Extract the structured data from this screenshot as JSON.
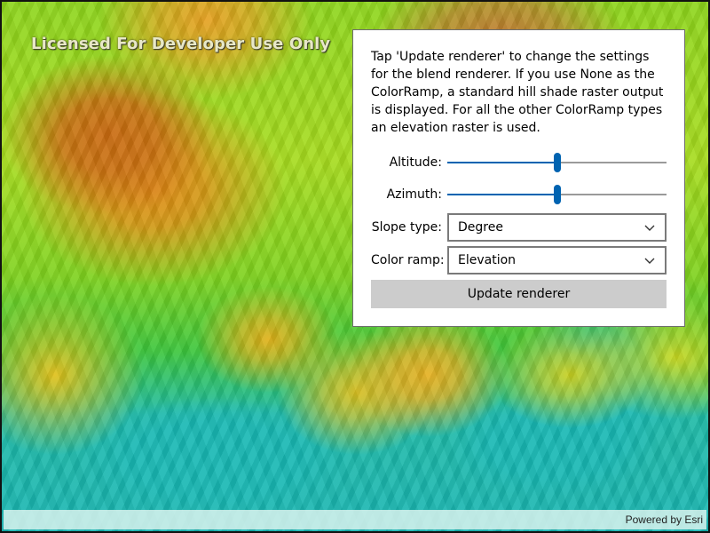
{
  "map": {
    "watermark": "Licensed For Developer Use Only",
    "attribution": "Powered by Esri"
  },
  "panel": {
    "description": "Tap 'Update renderer' to change the settings for the blend renderer. If you use None as the ColorRamp, a standard hill shade raster output is displayed. For all the other ColorRamp types an elevation raster is used.",
    "altitude": {
      "label": "Altitude:",
      "fraction": 0.5
    },
    "azimuth": {
      "label": "Azimuth:",
      "fraction": 0.5
    },
    "slope_type": {
      "label": "Slope type:",
      "value": "Degree",
      "icon": "chevron-down-icon"
    },
    "color_ramp": {
      "label": "Color ramp:",
      "value": "Elevation",
      "icon": "chevron-down-icon"
    },
    "update_button_label": "Update renderer"
  },
  "colors": {
    "accent": "#0063b1",
    "button_bg": "#cccccc",
    "track": "#9a9a9a"
  }
}
